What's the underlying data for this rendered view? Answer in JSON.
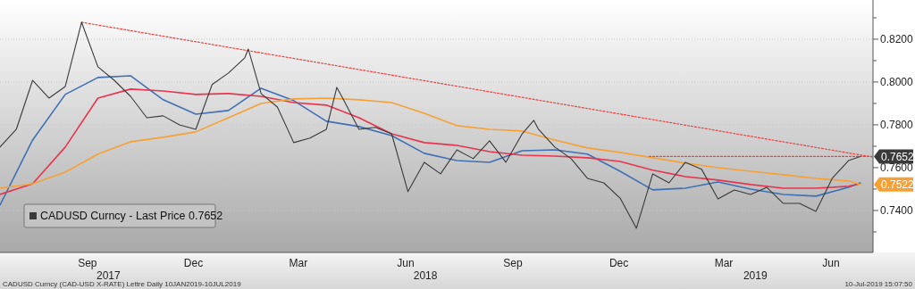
{
  "chart_data": {
    "type": "line",
    "legend": "bottom left",
    "grid": "y",
    "line_style": "solid",
    "marker": "none",
    "xlim": [
      "2017-07-02",
      "2019-07-21"
    ],
    "ylim": [
      0.7204,
      0.8383
    ],
    "xticks": [
      {
        "value": "2017-09-15",
        "label": "Sep"
      },
      {
        "value": "2017-12-15",
        "label": "Dec"
      },
      {
        "value": "2018-03-15",
        "label": "Mar"
      },
      {
        "value": "2018-06-15",
        "label": "Jun"
      },
      {
        "value": "2018-09-15",
        "label": "Sep"
      },
      {
        "value": "2018-12-15",
        "label": "Dec"
      },
      {
        "value": "2019-03-15",
        "label": "Mar"
      },
      {
        "value": "2019-06-15",
        "label": "Jun"
      }
    ],
    "x2lim": [
      "2017-07-02",
      "2019-07-21"
    ],
    "x2ticks": [
      {
        "value": "2017-10-03",
        "label": "2017"
      },
      {
        "value": "2018-07-02",
        "label": "2018"
      },
      {
        "value": "2019-04-11",
        "label": "2019"
      }
    ],
    "yticks": [
      {
        "value": 0.73,
        "label": null
      },
      {
        "value": 0.74,
        "label": "0.7400"
      },
      {
        "value": 0.75,
        "label": null
      },
      {
        "value": 0.76,
        "label": "0.7600"
      },
      {
        "value": 0.77,
        "label": null
      },
      {
        "value": 0.78,
        "label": "0.7800"
      },
      {
        "value": 0.79,
        "label": null
      },
      {
        "value": 0.8,
        "label": "0.8000"
      },
      {
        "value": 0.81,
        "label": null
      },
      {
        "value": 0.82,
        "label": "0.8200"
      },
      {
        "value": 0.83,
        "label": null
      }
    ],
    "series": [
      {
        "name": "CADUSD Curncy - Last Price 0.7652",
        "color": "#3a3a3a",
        "x": [
          "2017-07-02",
          "2017-07-16",
          "2017-07-30",
          "2017-08-13",
          "2017-08-27",
          "2017-09-10",
          "2017-09-24",
          "2017-10-08",
          "2017-10-22",
          "2017-11-05",
          "2017-11-19",
          "2017-12-03",
          "2017-12-17",
          "2017-12-31",
          "2018-01-14",
          "2018-01-28",
          "2018-01-31",
          "2018-02-11",
          "2018-02-25",
          "2018-03-11",
          "2018-03-25",
          "2018-04-08",
          "2018-04-17",
          "2018-04-22",
          "2018-05-06",
          "2018-05-20",
          "2018-06-03",
          "2018-06-17",
          "2018-07-01",
          "2018-07-15",
          "2018-07-29",
          "2018-08-12",
          "2018-08-26",
          "2018-09-09",
          "2018-09-23",
          "2018-10-03",
          "2018-10-07",
          "2018-10-21",
          "2018-11-04",
          "2018-11-18",
          "2018-12-02",
          "2018-12-16",
          "2018-12-30",
          "2019-01-13",
          "2019-01-27",
          "2019-02-10",
          "2019-02-24",
          "2019-03-10",
          "2019-03-24",
          "2019-04-07",
          "2019-04-21",
          "2019-05-05",
          "2019-05-19",
          "2019-06-02",
          "2019-06-16",
          "2019-06-30",
          "2019-07-10"
        ],
        "values": [
          0.7696,
          0.7779,
          0.8008,
          0.7925,
          0.7979,
          0.8279,
          0.8071,
          0.8008,
          0.7933,
          0.7833,
          0.7842,
          0.78,
          0.7779,
          0.7988,
          0.8042,
          0.8113,
          0.8154,
          0.7946,
          0.7883,
          0.7717,
          0.7738,
          0.7779,
          0.7975,
          0.7925,
          0.7779,
          0.7788,
          0.7758,
          0.7488,
          0.7625,
          0.7571,
          0.7683,
          0.7642,
          0.7725,
          0.7625,
          0.7758,
          0.7821,
          0.7779,
          0.7696,
          0.7642,
          0.755,
          0.7529,
          0.7458,
          0.7317,
          0.7571,
          0.7529,
          0.7625,
          0.7592,
          0.7454,
          0.7496,
          0.7475,
          0.7508,
          0.7433,
          0.7433,
          0.7396,
          0.755,
          0.7633,
          0.7652
        ]
      },
      {
        "color": "#3f6fb5",
        "x": [
          "2017-07-02",
          "2017-07-30",
          "2017-08-27",
          "2017-09-24",
          "2017-10-22",
          "2017-11-19",
          "2017-12-17",
          "2018-01-14",
          "2018-02-11",
          "2018-03-11",
          "2018-04-08",
          "2018-05-06",
          "2018-06-03",
          "2018-07-01",
          "2018-07-29",
          "2018-08-26",
          "2018-09-23",
          "2018-10-21",
          "2018-11-18",
          "2018-12-16",
          "2019-01-13",
          "2019-02-10",
          "2019-03-10",
          "2019-04-07",
          "2019-05-05",
          "2019-06-02",
          "2019-06-30",
          "2019-07-10"
        ],
        "values": [
          0.7425,
          0.7729,
          0.7942,
          0.8021,
          0.8029,
          0.7917,
          0.785,
          0.7867,
          0.7971,
          0.7913,
          0.7817,
          0.7792,
          0.775,
          0.7667,
          0.7633,
          0.7625,
          0.7679,
          0.7683,
          0.7663,
          0.7583,
          0.7496,
          0.7504,
          0.7533,
          0.75,
          0.7475,
          0.7467,
          0.7508,
          0.7529
        ]
      },
      {
        "color": "#e8344e",
        "x": [
          "2017-07-02",
          "2017-07-30",
          "2017-08-27",
          "2017-09-24",
          "2017-10-22",
          "2017-11-19",
          "2017-12-17",
          "2018-01-14",
          "2018-02-11",
          "2018-03-11",
          "2018-04-08",
          "2018-05-06",
          "2018-06-03",
          "2018-07-01",
          "2018-07-29",
          "2018-08-26",
          "2018-09-23",
          "2018-10-21",
          "2018-11-18",
          "2018-12-16",
          "2019-01-13",
          "2019-02-10",
          "2019-03-10",
          "2019-04-07",
          "2019-05-05",
          "2019-06-02",
          "2019-06-30",
          "2019-07-10"
        ],
        "values": [
          0.7475,
          0.7525,
          0.7696,
          0.7925,
          0.7967,
          0.7958,
          0.7942,
          0.7946,
          0.7933,
          0.7904,
          0.7892,
          0.7833,
          0.7758,
          0.7717,
          0.7704,
          0.7675,
          0.7658,
          0.7654,
          0.7646,
          0.7629,
          0.7588,
          0.7558,
          0.7542,
          0.7521,
          0.7504,
          0.7504,
          0.7513,
          0.7525
        ]
      },
      {
        "color": "#f7a035",
        "x": [
          "2017-07-02",
          "2017-07-30",
          "2017-08-27",
          "2017-09-24",
          "2017-10-22",
          "2017-11-19",
          "2017-12-17",
          "2018-01-14",
          "2018-02-11",
          "2018-03-11",
          "2018-04-08",
          "2018-05-06",
          "2018-06-03",
          "2018-07-01",
          "2018-07-29",
          "2018-08-26",
          "2018-09-23",
          "2018-10-21",
          "2018-11-18",
          "2018-12-16",
          "2019-01-13",
          "2019-02-10",
          "2019-03-10",
          "2019-04-07",
          "2019-05-05",
          "2019-06-02",
          "2019-06-30",
          "2019-07-10"
        ],
        "values": [
          0.7504,
          0.7525,
          0.7579,
          0.7663,
          0.7721,
          0.7742,
          0.7767,
          0.7833,
          0.79,
          0.7921,
          0.7925,
          0.7917,
          0.7904,
          0.7854,
          0.7796,
          0.7779,
          0.7771,
          0.7729,
          0.7692,
          0.7671,
          0.7646,
          0.7621,
          0.76,
          0.7583,
          0.7567,
          0.755,
          0.7538,
          0.7522
        ]
      },
      {
        "color": "#ee4040",
        "line_style": "dotted",
        "x": [
          "2017-09-10",
          "2019-07-20"
        ],
        "values": [
          0.8279,
          0.765
        ]
      },
      {
        "color": "#ee4040",
        "line_style": "dotted",
        "x": [
          "2019-01-10",
          "2019-07-20"
        ],
        "values": [
          0.7652,
          0.7652
        ]
      }
    ],
    "annotations": [
      {
        "text": "0.7652",
        "x": "2019-07-10",
        "y": 0.7652
      },
      {
        "text": "0.7522",
        "x": "2019-07-10",
        "y": 0.7522
      },
      "CADUSD Curncy (CAD-USD X-RATE) Lettre  Daily 10JAN2019-10JUL2019",
      "10-Jul-2019 15:07:50"
    ]
  }
}
